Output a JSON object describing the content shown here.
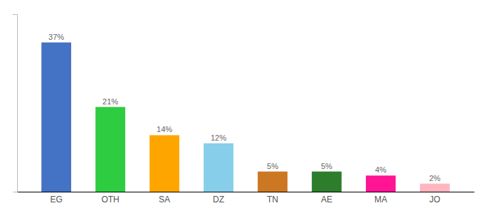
{
  "chart_data": {
    "type": "bar",
    "categories": [
      "EG",
      "OTH",
      "SA",
      "DZ",
      "TN",
      "AE",
      "MA",
      "JO"
    ],
    "values": [
      37,
      21,
      14,
      12,
      5,
      5,
      4,
      2
    ],
    "value_labels": [
      "37%",
      "21%",
      "14%",
      "12%",
      "5%",
      "5%",
      "4%",
      "2%"
    ],
    "colors": [
      "#4472C4",
      "#2ECC40",
      "#FFA500",
      "#87CEEB",
      "#CC7722",
      "#2D7D2D",
      "#FF1493",
      "#FFB6C1"
    ],
    "ylim": [
      0,
      44
    ],
    "data_labels": true,
    "tick_labels": "x",
    "grid": false
  }
}
